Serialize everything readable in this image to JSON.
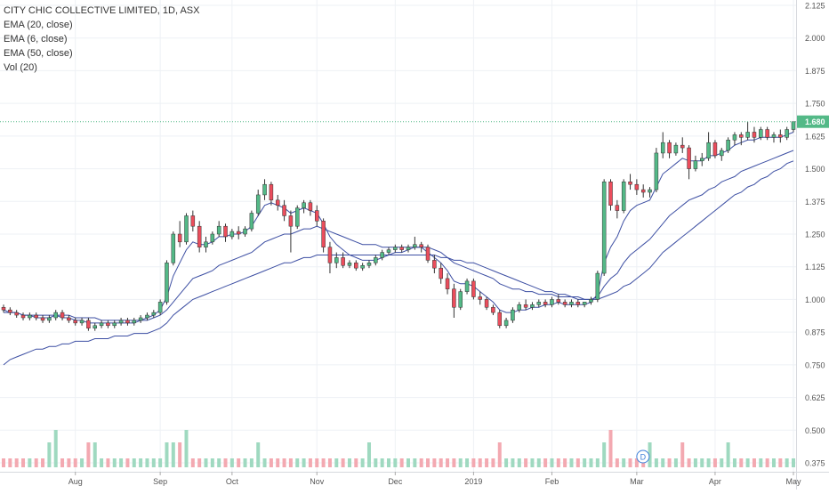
{
  "legend": {
    "title": "CITY CHIC COLLECTIVE LIMITED, 1D, ASX",
    "indicators": [
      "EMA (20, close)",
      "EMA (6, close)",
      "EMA (50, close)",
      "Vol (20)"
    ]
  },
  "chart_data": {
    "type": "candlestick",
    "title": "CITY CHIC COLLECTIVE LIMITED, 1D, ASX",
    "x_tick_labels": [
      "Aug",
      "Sep",
      "Oct",
      "Nov",
      "Dec",
      "2019",
      "Feb",
      "Mar",
      "Apr",
      "May"
    ],
    "y_tick_labels": [
      "2.125",
      "2.000",
      "1.875",
      "1.750",
      "1.625",
      "1.500",
      "1.375",
      "1.250",
      "1.125",
      "1.000",
      "0.875",
      "0.750",
      "0.625",
      "0.500",
      "0.375"
    ],
    "ylim": [
      0.34,
      2.14
    ],
    "last_price": "1.680",
    "annotation": "D",
    "colors": {
      "up": "#53b987",
      "down": "#eb4d5c",
      "ema": "#3d4fa3",
      "price_line": "#53b987",
      "vol_up": "#9fd9c0",
      "vol_down": "#f3a9b1"
    },
    "candles": [
      [
        0.97,
        0.98,
        0.95,
        0.96
      ],
      [
        0.96,
        0.97,
        0.94,
        0.95
      ],
      [
        0.95,
        0.96,
        0.93,
        0.94
      ],
      [
        0.94,
        0.95,
        0.92,
        0.93
      ],
      [
        0.93,
        0.95,
        0.92,
        0.94
      ],
      [
        0.94,
        0.95,
        0.92,
        0.93
      ],
      [
        0.93,
        0.94,
        0.91,
        0.92
      ],
      [
        0.92,
        0.94,
        0.91,
        0.93
      ],
      [
        0.93,
        0.96,
        0.92,
        0.95
      ],
      [
        0.95,
        0.96,
        0.92,
        0.93
      ],
      [
        0.93,
        0.94,
        0.91,
        0.92
      ],
      [
        0.92,
        0.93,
        0.9,
        0.91
      ],
      [
        0.91,
        0.93,
        0.9,
        0.92
      ],
      [
        0.92,
        0.93,
        0.88,
        0.89
      ],
      [
        0.89,
        0.91,
        0.88,
        0.9
      ],
      [
        0.9,
        0.92,
        0.89,
        0.91
      ],
      [
        0.91,
        0.92,
        0.89,
        0.9
      ],
      [
        0.9,
        0.92,
        0.89,
        0.91
      ],
      [
        0.91,
        0.93,
        0.9,
        0.92
      ],
      [
        0.92,
        0.93,
        0.9,
        0.91
      ],
      [
        0.91,
        0.93,
        0.9,
        0.92
      ],
      [
        0.92,
        0.94,
        0.91,
        0.93
      ],
      [
        0.93,
        0.95,
        0.92,
        0.94
      ],
      [
        0.94,
        0.96,
        0.93,
        0.95
      ],
      [
        0.95,
        1.0,
        0.94,
        0.99
      ],
      [
        0.99,
        1.15,
        0.98,
        1.14
      ],
      [
        1.14,
        1.26,
        1.13,
        1.25
      ],
      [
        1.25,
        1.3,
        1.2,
        1.22
      ],
      [
        1.22,
        1.33,
        1.21,
        1.32
      ],
      [
        1.32,
        1.34,
        1.26,
        1.28
      ],
      [
        1.28,
        1.3,
        1.18,
        1.2
      ],
      [
        1.2,
        1.24,
        1.18,
        1.22
      ],
      [
        1.22,
        1.26,
        1.21,
        1.25
      ],
      [
        1.25,
        1.3,
        1.24,
        1.28
      ],
      [
        1.28,
        1.29,
        1.22,
        1.24
      ],
      [
        1.24,
        1.27,
        1.23,
        1.26
      ],
      [
        1.26,
        1.28,
        1.23,
        1.25
      ],
      [
        1.25,
        1.28,
        1.24,
        1.27
      ],
      [
        1.27,
        1.34,
        1.26,
        1.33
      ],
      [
        1.33,
        1.42,
        1.32,
        1.4
      ],
      [
        1.4,
        1.46,
        1.38,
        1.44
      ],
      [
        1.44,
        1.45,
        1.36,
        1.38
      ],
      [
        1.38,
        1.4,
        1.34,
        1.36
      ],
      [
        1.36,
        1.38,
        1.3,
        1.32
      ],
      [
        1.32,
        1.34,
        1.18,
        1.28
      ],
      [
        1.28,
        1.36,
        1.27,
        1.35
      ],
      [
        1.35,
        1.38,
        1.33,
        1.37
      ],
      [
        1.37,
        1.38,
        1.32,
        1.34
      ],
      [
        1.34,
        1.36,
        1.28,
        1.3
      ],
      [
        1.3,
        1.31,
        1.18,
        1.2
      ],
      [
        1.2,
        1.22,
        1.1,
        1.14
      ],
      [
        1.14,
        1.18,
        1.12,
        1.16
      ],
      [
        1.16,
        1.18,
        1.12,
        1.13
      ],
      [
        1.13,
        1.15,
        1.12,
        1.14
      ],
      [
        1.14,
        1.15,
        1.11,
        1.12
      ],
      [
        1.12,
        1.14,
        1.11,
        1.13
      ],
      [
        1.13,
        1.15,
        1.12,
        1.14
      ],
      [
        1.14,
        1.17,
        1.13,
        1.16
      ],
      [
        1.16,
        1.19,
        1.15,
        1.18
      ],
      [
        1.18,
        1.2,
        1.17,
        1.19
      ],
      [
        1.19,
        1.21,
        1.18,
        1.2
      ],
      [
        1.2,
        1.21,
        1.18,
        1.19
      ],
      [
        1.19,
        1.21,
        1.18,
        1.2
      ],
      [
        1.2,
        1.24,
        1.19,
        1.21
      ],
      [
        1.21,
        1.22,
        1.18,
        1.2
      ],
      [
        1.2,
        1.21,
        1.14,
        1.15
      ],
      [
        1.15,
        1.17,
        1.1,
        1.12
      ],
      [
        1.12,
        1.14,
        1.06,
        1.08
      ],
      [
        1.08,
        1.1,
        1.02,
        1.04
      ],
      [
        1.04,
        1.06,
        0.93,
        0.97
      ],
      [
        0.97,
        1.04,
        0.96,
        1.03
      ],
      [
        1.03,
        1.08,
        1.02,
        1.07
      ],
      [
        1.07,
        1.08,
        1.0,
        1.01
      ],
      [
        1.01,
        1.03,
        0.98,
        1.0
      ],
      [
        1.0,
        1.01,
        0.96,
        0.97
      ],
      [
        0.97,
        0.98,
        0.94,
        0.95
      ],
      [
        0.95,
        0.96,
        0.89,
        0.9
      ],
      [
        0.9,
        0.93,
        0.89,
        0.92
      ],
      [
        0.92,
        0.97,
        0.91,
        0.96
      ],
      [
        0.96,
        0.99,
        0.95,
        0.98
      ],
      [
        0.98,
        1.0,
        0.96,
        0.97
      ],
      [
        0.97,
        0.99,
        0.96,
        0.98
      ],
      [
        0.98,
        1.0,
        0.97,
        0.99
      ],
      [
        0.99,
        1.0,
        0.97,
        0.98
      ],
      [
        0.98,
        1.01,
        0.97,
        1.0
      ],
      [
        1.0,
        1.02,
        0.98,
        0.99
      ],
      [
        0.99,
        1.0,
        0.97,
        0.98
      ],
      [
        0.98,
        1.0,
        0.97,
        0.99
      ],
      [
        0.99,
        1.0,
        0.97,
        0.98
      ],
      [
        0.98,
        0.99,
        0.97,
        0.99
      ],
      [
        0.99,
        1.01,
        0.98,
        1.0
      ],
      [
        1.0,
        1.11,
        0.99,
        1.1
      ],
      [
        1.1,
        1.46,
        1.09,
        1.45
      ],
      [
        1.45,
        1.46,
        1.34,
        1.36
      ],
      [
        1.36,
        1.38,
        1.31,
        1.34
      ],
      [
        1.34,
        1.46,
        1.33,
        1.45
      ],
      [
        1.45,
        1.48,
        1.42,
        1.44
      ],
      [
        1.44,
        1.46,
        1.4,
        1.42
      ],
      [
        1.42,
        1.44,
        1.39,
        1.41
      ],
      [
        1.41,
        1.43,
        1.39,
        1.42
      ],
      [
        1.42,
        1.58,
        1.41,
        1.56
      ],
      [
        1.56,
        1.64,
        1.54,
        1.6
      ],
      [
        1.6,
        1.61,
        1.54,
        1.56
      ],
      [
        1.56,
        1.6,
        1.55,
        1.59
      ],
      [
        1.59,
        1.62,
        1.56,
        1.58
      ],
      [
        1.58,
        1.59,
        1.46,
        1.5
      ],
      [
        1.5,
        1.55,
        1.49,
        1.53
      ],
      [
        1.53,
        1.56,
        1.51,
        1.54
      ],
      [
        1.54,
        1.64,
        1.53,
        1.6
      ],
      [
        1.6,
        1.61,
        1.54,
        1.55
      ],
      [
        1.55,
        1.58,
        1.53,
        1.57
      ],
      [
        1.57,
        1.62,
        1.56,
        1.61
      ],
      [
        1.61,
        1.64,
        1.59,
        1.63
      ],
      [
        1.63,
        1.64,
        1.59,
        1.62
      ],
      [
        1.62,
        1.68,
        1.61,
        1.64
      ],
      [
        1.64,
        1.66,
        1.6,
        1.62
      ],
      [
        1.62,
        1.66,
        1.61,
        1.65
      ],
      [
        1.65,
        1.66,
        1.61,
        1.62
      ],
      [
        1.62,
        1.64,
        1.6,
        1.63
      ],
      [
        1.63,
        1.65,
        1.6,
        1.62
      ],
      [
        1.62,
        1.66,
        1.61,
        1.65
      ],
      [
        1.65,
        1.68,
        1.64,
        1.68
      ]
    ],
    "ema_fast": [
      0.96,
      0.95,
      0.95,
      0.94,
      0.94,
      0.93,
      0.93,
      0.93,
      0.94,
      0.93,
      0.93,
      0.92,
      0.92,
      0.91,
      0.91,
      0.91,
      0.91,
      0.91,
      0.91,
      0.91,
      0.91,
      0.92,
      0.93,
      0.94,
      0.96,
      1.01,
      1.09,
      1.14,
      1.19,
      1.22,
      1.21,
      1.21,
      1.22,
      1.24,
      1.24,
      1.25,
      1.25,
      1.26,
      1.28,
      1.32,
      1.36,
      1.37,
      1.36,
      1.35,
      1.33,
      1.34,
      1.35,
      1.34,
      1.33,
      1.29,
      1.24,
      1.21,
      1.19,
      1.17,
      1.16,
      1.15,
      1.15,
      1.15,
      1.16,
      1.17,
      1.18,
      1.18,
      1.19,
      1.2,
      1.2,
      1.18,
      1.16,
      1.14,
      1.11,
      1.07,
      1.06,
      1.06,
      1.05,
      1.03,
      1.01,
      0.99,
      0.96,
      0.95,
      0.95,
      0.96,
      0.96,
      0.97,
      0.97,
      0.98,
      0.98,
      0.99,
      0.98,
      0.98,
      0.98,
      0.98,
      0.99,
      1.02,
      1.14,
      1.2,
      1.24,
      1.3,
      1.34,
      1.36,
      1.37,
      1.38,
      1.43,
      1.48,
      1.5,
      1.52,
      1.54,
      1.53,
      1.53,
      1.53,
      1.55,
      1.55,
      1.56,
      1.57,
      1.59,
      1.6,
      1.61,
      1.61,
      1.62,
      1.62,
      1.62,
      1.62,
      1.63,
      1.64
    ],
    "ema_mid": [
      0.95,
      0.95,
      0.95,
      0.94,
      0.94,
      0.94,
      0.94,
      0.94,
      0.94,
      0.94,
      0.94,
      0.93,
      0.93,
      0.93,
      0.93,
      0.92,
      0.92,
      0.92,
      0.92,
      0.92,
      0.92,
      0.92,
      0.92,
      0.93,
      0.94,
      0.96,
      0.99,
      1.02,
      1.05,
      1.08,
      1.09,
      1.1,
      1.11,
      1.13,
      1.14,
      1.15,
      1.16,
      1.17,
      1.18,
      1.2,
      1.22,
      1.23,
      1.24,
      1.25,
      1.25,
      1.26,
      1.27,
      1.27,
      1.28,
      1.27,
      1.26,
      1.25,
      1.24,
      1.23,
      1.22,
      1.21,
      1.21,
      1.21,
      1.2,
      1.2,
      1.2,
      1.2,
      1.2,
      1.2,
      1.2,
      1.2,
      1.19,
      1.18,
      1.16,
      1.14,
      1.13,
      1.12,
      1.11,
      1.1,
      1.09,
      1.08,
      1.06,
      1.05,
      1.04,
      1.04,
      1.03,
      1.03,
      1.02,
      1.02,
      1.02,
      1.01,
      1.01,
      1.01,
      1.0,
      1.0,
      1.0,
      1.01,
      1.05,
      1.08,
      1.1,
      1.14,
      1.17,
      1.19,
      1.21,
      1.23,
      1.26,
      1.29,
      1.32,
      1.34,
      1.36,
      1.38,
      1.39,
      1.4,
      1.42,
      1.43,
      1.45,
      1.46,
      1.47,
      1.49,
      1.5,
      1.51,
      1.52,
      1.53,
      1.54,
      1.55,
      1.56,
      1.57
    ],
    "ema_slow": [
      0.75,
      0.77,
      0.78,
      0.79,
      0.8,
      0.81,
      0.81,
      0.82,
      0.82,
      0.83,
      0.83,
      0.84,
      0.84,
      0.84,
      0.85,
      0.85,
      0.85,
      0.86,
      0.86,
      0.86,
      0.87,
      0.87,
      0.87,
      0.88,
      0.89,
      0.91,
      0.94,
      0.96,
      0.98,
      1.0,
      1.01,
      1.02,
      1.03,
      1.04,
      1.05,
      1.06,
      1.07,
      1.08,
      1.09,
      1.1,
      1.11,
      1.12,
      1.13,
      1.14,
      1.14,
      1.15,
      1.16,
      1.16,
      1.17,
      1.17,
      1.17,
      1.17,
      1.17,
      1.17,
      1.17,
      1.17,
      1.17,
      1.17,
      1.17,
      1.17,
      1.17,
      1.17,
      1.17,
      1.17,
      1.17,
      1.17,
      1.17,
      1.16,
      1.16,
      1.15,
      1.15,
      1.14,
      1.14,
      1.13,
      1.12,
      1.11,
      1.1,
      1.09,
      1.08,
      1.07,
      1.06,
      1.05,
      1.04,
      1.03,
      1.03,
      1.02,
      1.02,
      1.01,
      1.01,
      1.0,
      1.0,
      1.0,
      1.01,
      1.02,
      1.03,
      1.05,
      1.06,
      1.08,
      1.1,
      1.12,
      1.15,
      1.18,
      1.2,
      1.22,
      1.24,
      1.26,
      1.28,
      1.3,
      1.32,
      1.34,
      1.36,
      1.38,
      1.4,
      1.41,
      1.43,
      1.44,
      1.46,
      1.47,
      1.49,
      1.5,
      1.52,
      1.53
    ],
    "volume": [
      0.01,
      0.01,
      0.01,
      0.01,
      0.01,
      0.01,
      0.01,
      0.02,
      0.03,
      0.01,
      0.01,
      0.01,
      0.01,
      0.02,
      0.02,
      0.01,
      0.01,
      0.01,
      0.01,
      0.01,
      0.01,
      0.01,
      0.01,
      0.01,
      0.01,
      0.02,
      0.02,
      0.02,
      0.03,
      0.01,
      0.01,
      0.01,
      0.01,
      0.01,
      0.01,
      0.01,
      0.01,
      0.01,
      0.01,
      0.02,
      0.01,
      0.01,
      0.01,
      0.01,
      0.01,
      0.01,
      0.01,
      0.01,
      0.01,
      0.01,
      0.01,
      0.01,
      0.01,
      0.01,
      0.01,
      0.01,
      0.02,
      0.01,
      0.01,
      0.01,
      0.01,
      0.01,
      0.01,
      0.01,
      0.01,
      0.01,
      0.01,
      0.01,
      0.01,
      0.01,
      0.01,
      0.01,
      0.01,
      0.01,
      0.01,
      0.01,
      0.02,
      0.01,
      0.01,
      0.01,
      0.01,
      0.01,
      0.01,
      0.01,
      0.01,
      0.01,
      0.01,
      0.01,
      0.01,
      0.01,
      0.01,
      0.01,
      0.02,
      0.03,
      0.01,
      0.01,
      0.01,
      0.01,
      0.01,
      0.02,
      0.01,
      0.01,
      0.01,
      0.01,
      0.02,
      0.01,
      0.01,
      0.01,
      0.01,
      0.01,
      0.01,
      0.02,
      0.01,
      0.01,
      0.01,
      0.01,
      0.01,
      0.01,
      0.01,
      0.01,
      0.01,
      0.01
    ]
  }
}
